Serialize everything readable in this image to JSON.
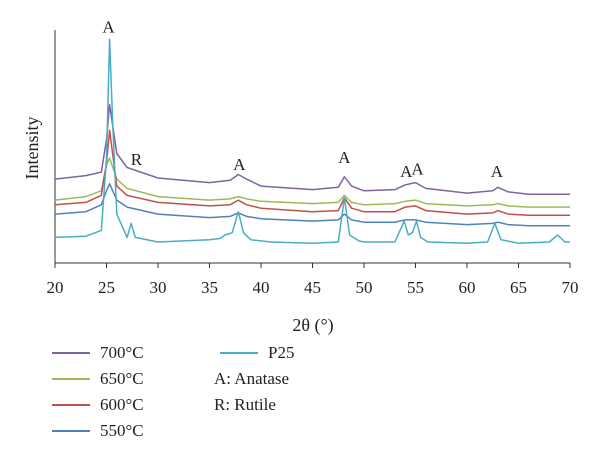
{
  "chart_data": {
    "type": "line",
    "title": "",
    "xlabel": "2θ (°)",
    "ylabel": "Intensity",
    "xlim": [
      20,
      70
    ],
    "xticks": [
      20,
      25,
      30,
      35,
      40,
      45,
      50,
      55,
      60,
      65,
      70
    ],
    "ylim": [
      0,
      100
    ],
    "grid": false,
    "legend_position": "bottom",
    "series": [
      {
        "name": "700°C",
        "color": "#8064a2",
        "x": [
          20,
          23,
          24.5,
          25,
          25.3,
          26,
          27,
          30,
          35,
          37,
          37.8,
          38.6,
          40,
          45,
          47.5,
          48.1,
          48.8,
          50,
          53,
          54,
          55,
          56,
          60,
          62.5,
          63,
          64,
          66,
          70
        ],
        "y": [
          36,
          37.5,
          39,
          53,
          68,
          47,
          41,
          36.5,
          34.5,
          35.5,
          38,
          36,
          33,
          31.5,
          32.5,
          37,
          33,
          31,
          31.5,
          33.5,
          34.5,
          32,
          30,
          31,
          32.5,
          30.5,
          29.5,
          29.5
        ]
      },
      {
        "name": "650°C",
        "color": "#9bbb59",
        "x": [
          20,
          23,
          24.5,
          25,
          25.3,
          26,
          27,
          30,
          35,
          37,
          37.8,
          38.6,
          40,
          45,
          47.5,
          48.1,
          48.8,
          50,
          53,
          54,
          55,
          56,
          60,
          62.5,
          63,
          64,
          66,
          70
        ],
        "y": [
          27,
          28.5,
          31,
          42,
          45,
          36,
          32,
          28.5,
          27,
          27.5,
          28.5,
          27.5,
          26.5,
          25.5,
          26,
          29,
          26,
          25,
          25.5,
          26.5,
          27,
          25.5,
          24.5,
          25,
          25.5,
          24.5,
          24,
          24
        ]
      },
      {
        "name": "600°C",
        "color": "#c0504d",
        "x": [
          20,
          23,
          24.5,
          25,
          25.3,
          26,
          27,
          30,
          35,
          37,
          37.8,
          38.6,
          40,
          45,
          47.5,
          48.1,
          48.8,
          50,
          53,
          54,
          55,
          56,
          60,
          62.5,
          63,
          64,
          66,
          70
        ],
        "y": [
          25,
          26,
          29,
          43,
          57,
          33,
          29,
          26,
          24.5,
          25,
          27,
          25,
          23.5,
          22,
          22.5,
          28,
          23.5,
          22,
          22,
          24,
          24.5,
          22.5,
          21,
          21.5,
          22.5,
          21,
          20.5,
          20.5
        ]
      },
      {
        "name": "550°C",
        "color": "#4f81bd",
        "x": [
          20,
          23,
          24.5,
          25,
          25.3,
          26,
          27,
          30,
          35,
          37,
          37.8,
          38.6,
          40,
          45,
          47.5,
          48.1,
          48.8,
          50,
          53,
          54,
          55,
          56,
          60,
          62.5,
          63,
          64,
          66,
          70
        ],
        "y": [
          21,
          22,
          25,
          31,
          34,
          27,
          24,
          21,
          19.5,
          20,
          21.5,
          20,
          19,
          18,
          18.5,
          21,
          18.5,
          17.5,
          17.5,
          18.5,
          18.5,
          17.5,
          16.5,
          17,
          17.5,
          16.5,
          16,
          16
        ]
      },
      {
        "name": "P25",
        "color": "#4bacc6",
        "x": [
          20,
          23,
          24.5,
          25,
          25.3,
          25.6,
          26,
          27,
          27.4,
          27.8,
          30,
          35,
          36,
          36.5,
          37.2,
          37.8,
          38.3,
          39,
          40,
          41,
          45,
          47.5,
          48.1,
          48.6,
          49.5,
          50,
          53,
          53.9,
          54.3,
          54.7,
          55.1,
          55.5,
          56.2,
          60,
          62,
          62.7,
          63.3,
          65,
          68,
          68.8,
          69.5,
          70
        ],
        "y": [
          11,
          11.5,
          14,
          45,
          96,
          60,
          21,
          11,
          17,
          11,
          9,
          10,
          10.5,
          12,
          13,
          22,
          13,
          10,
          9.5,
          9,
          8.5,
          9,
          28,
          12,
          9.5,
          9,
          9,
          18,
          12,
          13,
          18,
          11,
          9,
          8.5,
          9,
          17,
          10,
          8.5,
          9,
          12,
          9,
          9
        ]
      }
    ],
    "annotations": [
      {
        "text": "A",
        "x": 25.2,
        "y": 99
      },
      {
        "text": "R",
        "x": 27.9,
        "y": 42
      },
      {
        "text": "A",
        "x": 37.9,
        "y": 40
      },
      {
        "text": "A",
        "x": 48.1,
        "y": 43
      },
      {
        "text": "A",
        "x": 54.1,
        "y": 37
      },
      {
        "text": "A",
        "x": 55.2,
        "y": 38
      },
      {
        "text": "A",
        "x": 62.9,
        "y": 37
      }
    ],
    "notes": [
      "A: Anatase",
      "R: Rutile"
    ]
  }
}
